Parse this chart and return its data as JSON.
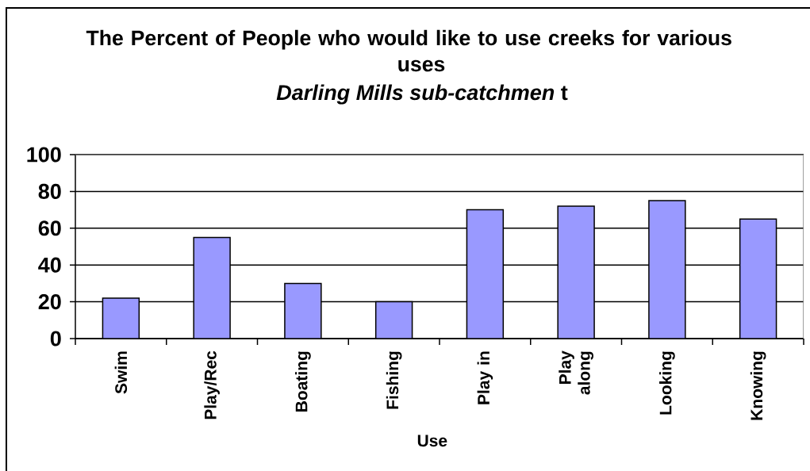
{
  "chart_data": {
    "type": "bar",
    "title": "The Percent of People who would like to use creeks for various uses",
    "subtitle": "*Darling Mills sub-catchmen* t",
    "xlabel": "Use",
    "categories": [
      "Swim",
      "Play/Rec",
      "Boating",
      "Fishing",
      "Play in",
      "Play along",
      "Looking",
      "Knowing"
    ],
    "values": [
      22,
      55,
      30,
      20,
      70,
      72,
      75,
      65
    ],
    "color": "#9999ff",
    "ylim": [
      0,
      100
    ],
    "yticks": [
      0,
      20,
      40,
      60,
      80,
      100
    ],
    "grid": "y"
  }
}
